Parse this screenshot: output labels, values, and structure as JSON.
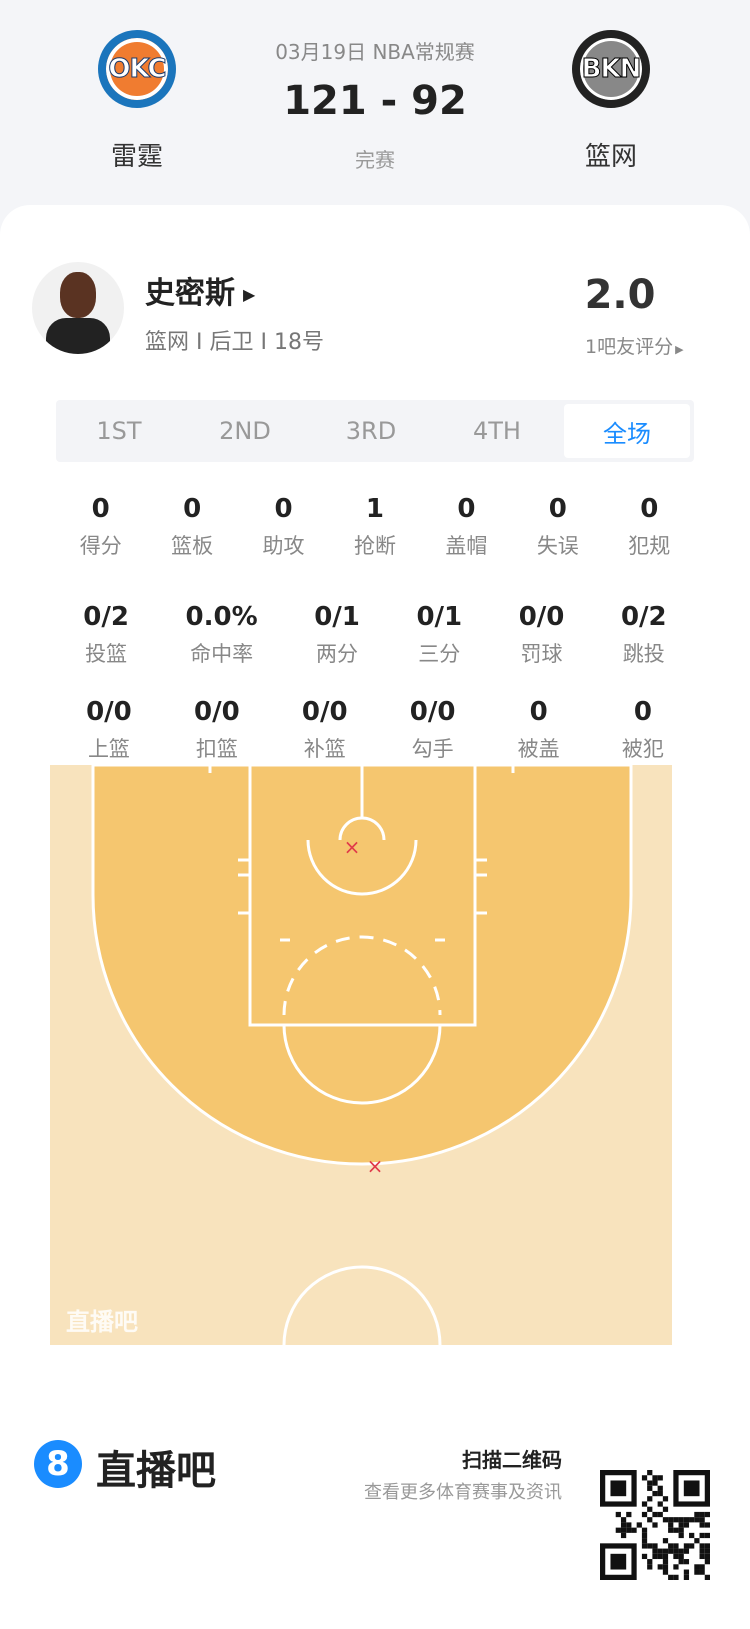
{
  "header": {
    "date_league": "03月19日 NBA常规赛",
    "score": "121 - 92",
    "status": "完赛",
    "home": {
      "name": "雷霆",
      "abbr": "OKC"
    },
    "away": {
      "name": "篮网",
      "abbr": "BKN"
    }
  },
  "player": {
    "name": "史密斯",
    "info": "篮网 I 后卫 I 18号",
    "rating": "2.0",
    "rating_label": "1吧友评分"
  },
  "tabs": [
    {
      "label": "1ST"
    },
    {
      "label": "2ND"
    },
    {
      "label": "3RD"
    },
    {
      "label": "4TH"
    },
    {
      "label": "全场"
    }
  ],
  "active_tab": "全场",
  "stats_row1": [
    {
      "v": "0",
      "l": "得分"
    },
    {
      "v": "0",
      "l": "篮板"
    },
    {
      "v": "0",
      "l": "助攻"
    },
    {
      "v": "1",
      "l": "抢断"
    },
    {
      "v": "0",
      "l": "盖帽"
    },
    {
      "v": "0",
      "l": "失误"
    },
    {
      "v": "0",
      "l": "犯规"
    }
  ],
  "stats_row2": [
    {
      "v": "0/2",
      "l": "投篮"
    },
    {
      "v": "0.0%",
      "l": "命中率"
    },
    {
      "v": "0/1",
      "l": "两分"
    },
    {
      "v": "0/1",
      "l": "三分"
    },
    {
      "v": "0/0",
      "l": "罚球"
    },
    {
      "v": "0/2",
      "l": "跳投"
    }
  ],
  "stats_row3": [
    {
      "v": "0/0",
      "l": "上篮"
    },
    {
      "v": "0/0",
      "l": "扣篮"
    },
    {
      "v": "0/0",
      "l": "补篮"
    },
    {
      "v": "0/0",
      "l": "勾手"
    },
    {
      "v": "0",
      "l": "被盖"
    },
    {
      "v": "0",
      "l": "被犯"
    }
  ],
  "court": {
    "watermark": "直播吧",
    "shots": [
      {
        "result": "miss",
        "type": "two",
        "label": "x"
      },
      {
        "result": "miss",
        "type": "three",
        "label": "x"
      }
    ],
    "miss_color": "#e03a4a"
  },
  "footer": {
    "brand": "直播吧",
    "brand_mark": "8",
    "scan": "扫描二维码",
    "desc": "查看更多体育赛事及资讯"
  },
  "colors": {
    "accent": "#1a8cff",
    "court_outer": "#f8e3bd",
    "court_inner": "#f5c66f"
  }
}
